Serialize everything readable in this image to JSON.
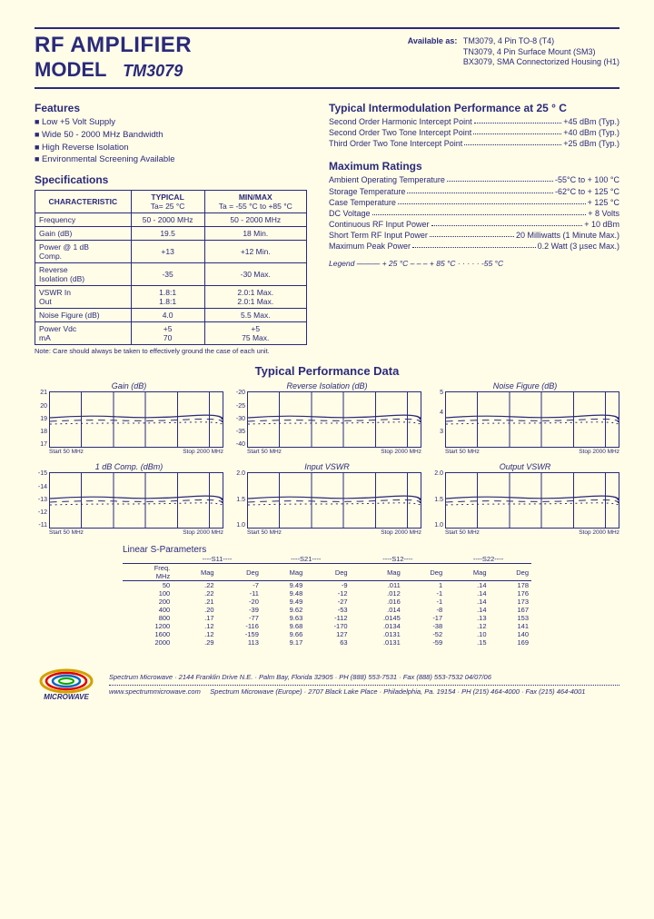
{
  "header": {
    "title_line1": "RF AMPLIFIER",
    "title_line2": "MODEL",
    "model": "TM3079",
    "available_label": "Available as:",
    "available": [
      "TM3079, 4 Pin TO-8 (T4)",
      "TN3079, 4 Pin Surface Mount (SM3)",
      "BX3079, SMA Connectorized Housing (H1)"
    ]
  },
  "features": {
    "title": "Features",
    "items": [
      "Low +5 Volt Supply",
      "Wide 50 - 2000 MHz Bandwidth",
      "High Reverse Isolation",
      "Environmental Screening Available"
    ]
  },
  "specs": {
    "title": "Specifications",
    "col_char": "CHARACTERISTIC",
    "col_typ": "TYPICAL",
    "col_typ_sub": "Ta= 25 °C",
    "col_mm": "MIN/MAX",
    "col_mm_sub": "Ta = -55 °C to +85 °C",
    "rows": [
      {
        "c": "Frequency",
        "t": "50 - 2000 MHz",
        "m": "50 - 2000 MHz"
      },
      {
        "c": "Gain (dB)",
        "t": "19.5",
        "m": "18 Min."
      },
      {
        "c": "Power @ 1 dB\nComp.",
        "t": "+13",
        "m": "+12 Min."
      },
      {
        "c": "Reverse\nIsolation (dB)",
        "t": "-35",
        "m": "-30 Max."
      },
      {
        "c": "VSWR       In\n               Out",
        "t": "1.8:1\n1.8:1",
        "m": "2.0:1 Max.\n2.0:1 Max."
      },
      {
        "c": "Noise Figure (dB)",
        "t": "4.0",
        "m": "5.5 Max."
      },
      {
        "c": "Power      Vdc\n               mA",
        "t": "+5\n70",
        "m": "+5\n75 Max."
      }
    ],
    "note": "Note: Care should always be taken to effectively ground the case of each unit."
  },
  "intermod": {
    "title": "Typical Intermodulation Performance at 25 ° C",
    "rows": [
      {
        "k": "Second Order Harmonic Intercept Point",
        "v": "+45 dBm (Typ.)"
      },
      {
        "k": "Second Order Two Tone Intercept Point",
        "v": "+40 dBm (Typ.)"
      },
      {
        "k": "Third Order Two Tone Intercept Point",
        "v": "+25 dBm (Typ.)"
      }
    ]
  },
  "maxratings": {
    "title": "Maximum Ratings",
    "rows": [
      {
        "k": "Ambient Operating Temperature",
        "v": "-55°C to + 100 °C"
      },
      {
        "k": "Storage Temperature",
        "v": "-62°C to + 125 °C"
      },
      {
        "k": "Case Temperature",
        "v": "+ 125 °C"
      },
      {
        "k": "DC Voltage",
        "v": "+ 8 Volts"
      },
      {
        "k": "Continuous RF Input Power",
        "v": "+ 10 dBm"
      },
      {
        "k": "Short Term RF Input Power",
        "v": "20 Milliwatts (1 Minute Max.)"
      },
      {
        "k": "Maximum Peak Power",
        "v": "0.2 Watt (3 µsec Max.)"
      }
    ]
  },
  "legend": "Legend  ———  + 25 °C   – – –  + 85 °C   · · · · ·  -55 °C",
  "perf_title": "Typical Performance Data",
  "charts": [
    {
      "title": "Gain (dB)",
      "ylabels": [
        "21",
        "20",
        "19",
        "18",
        "17"
      ],
      "xstart": "Start 50 MHz",
      "xstop": "Stop 2000 MHz"
    },
    {
      "title": "Reverse Isolation (dB)",
      "ylabels": [
        "-20",
        "-25",
        "-30",
        "-35",
        "-40"
      ],
      "xstart": "Start 50 MHz",
      "xstop": "Stop 2000 MHz"
    },
    {
      "title": "Noise Figure (dB)",
      "ylabels": [
        "5",
        "4",
        "3",
        ""
      ],
      "xstart": "Start 50 MHz",
      "xstop": "Stop 2000 MHz"
    },
    {
      "title": "1 dB Comp. (dBm)",
      "ylabels": [
        "-15",
        "-14",
        "-13",
        "-12",
        "-11"
      ],
      "xstart": "Start 50 MHz",
      "xstop": "Stop 2000 MHz"
    },
    {
      "title": "Input VSWR",
      "ylabels": [
        "2.0",
        "1.5",
        "1.0"
      ],
      "xstart": "Start 50 MHz",
      "xstop": "Stop 2000 MHz"
    },
    {
      "title": "Output VSWR",
      "ylabels": [
        "2.0",
        "1.5",
        "1.0"
      ],
      "xstart": "Start 50 MHz",
      "xstop": "Stop 2000 MHz"
    }
  ],
  "sparams": {
    "title": "Linear S-Parameters",
    "groups": [
      "----S11----",
      "----S21----",
      "----S12----",
      "----S22----"
    ],
    "head": [
      "Freq.\nMHz",
      "Mag",
      "Deg",
      "Mag",
      "Deg",
      "Mag",
      "Deg",
      "Mag",
      "Deg"
    ],
    "rows": [
      [
        "50",
        ".22",
        "-7",
        "9.49",
        "-9",
        ".011",
        "1",
        ".14",
        "178"
      ],
      [
        "100",
        ".22",
        "-11",
        "9.48",
        "-12",
        ".012",
        "-1",
        ".14",
        "176"
      ],
      [
        "200",
        ".21",
        "-20",
        "9.49",
        "-27",
        ".016",
        "-1",
        ".14",
        "173"
      ],
      [
        "400",
        ".20",
        "-39",
        "9.62",
        "-53",
        ".014",
        "-8",
        ".14",
        "167"
      ],
      [
        "800",
        ".17",
        "-77",
        "9.63",
        "-112",
        ".0145",
        "-17",
        ".13",
        "153"
      ],
      [
        "1200",
        ".12",
        "-116",
        "9.68",
        "-170",
        ".0134",
        "-38",
        ".12",
        "141"
      ],
      [
        "1600",
        ".12",
        "-159",
        "9.66",
        "127",
        ".0131",
        "-52",
        ".10",
        "140"
      ],
      [
        "2000",
        ".29",
        "113",
        "9.17",
        "63",
        ".0131",
        "-59",
        ".15",
        "169"
      ]
    ]
  },
  "footer": {
    "line1": "Spectrum Microwave · 2144 Franklin Drive N.E. · Palm Bay, Florida 32905 · PH (888) 553-7531 · Fax (888) 553-7532   04/07/06",
    "url": "www.spectrummicrowave.com",
    "line2": "Spectrum Microwave (Europe) · 2707 Black Lake Place · Philadelphia, Pa. 19154 · PH (215) 464-4000 · Fax (215) 464-4001"
  },
  "colors": {
    "ink": "#2a2a7a",
    "bg": "#fffce8"
  }
}
